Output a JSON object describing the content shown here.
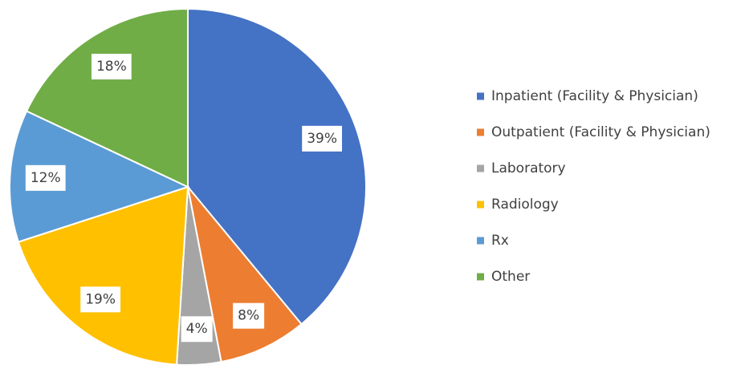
{
  "chart_data": {
    "type": "pie",
    "categories": [
      "Inpatient (Facility & Physician)",
      "Outpatient (Facility & Physician)",
      "Laboratory",
      "Radiology",
      "Rx",
      "Other"
    ],
    "values": [
      39,
      8,
      4,
      19,
      12,
      18
    ],
    "value_labels": [
      "39%",
      "8%",
      "4%",
      "19%",
      "12%",
      "18%"
    ],
    "colors": [
      "#4472c4",
      "#ed7d31",
      "#a5a5a5",
      "#ffc000",
      "#5b9bd5",
      "#70ad47"
    ],
    "legend": "right"
  }
}
